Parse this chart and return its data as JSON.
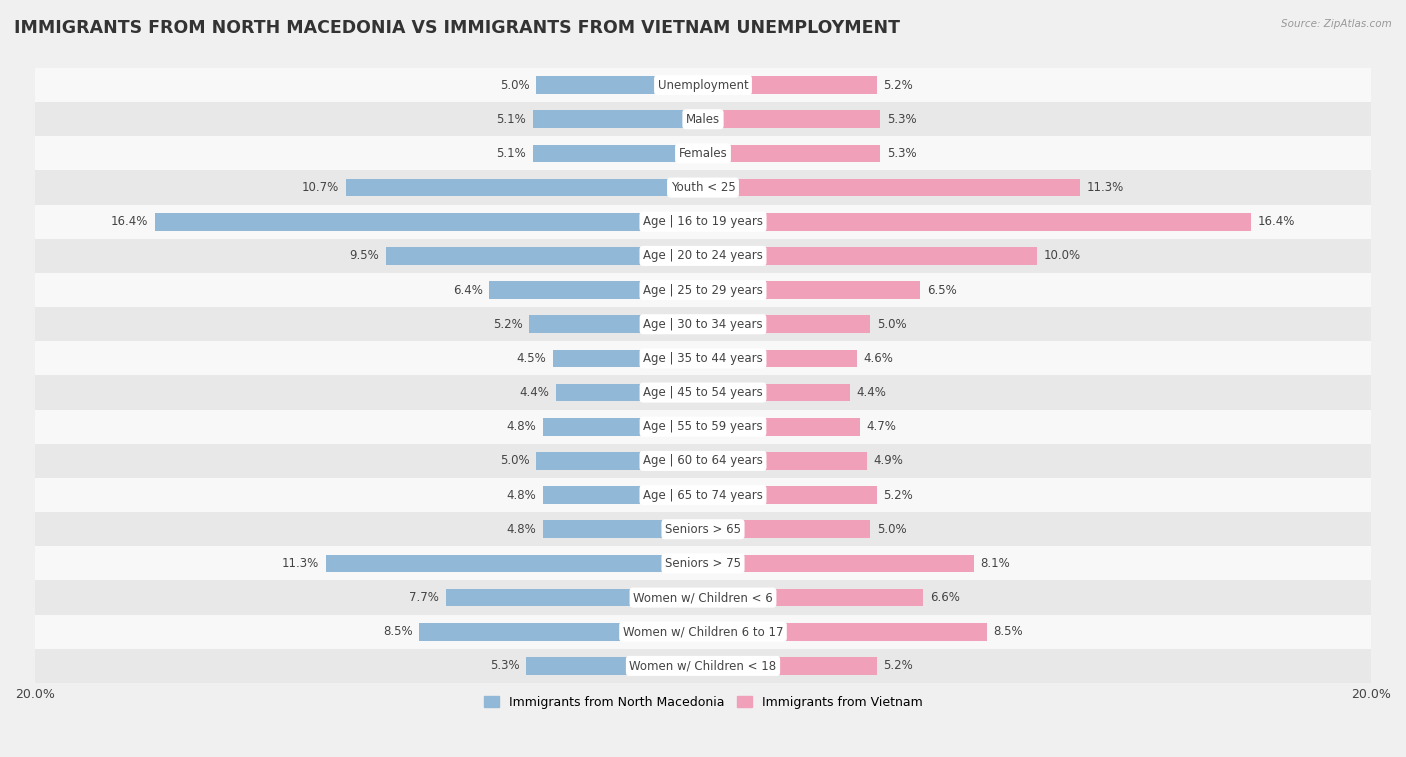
{
  "title": "IMMIGRANTS FROM NORTH MACEDONIA VS IMMIGRANTS FROM VIETNAM UNEMPLOYMENT",
  "source": "Source: ZipAtlas.com",
  "categories": [
    "Unemployment",
    "Males",
    "Females",
    "Youth < 25",
    "Age | 16 to 19 years",
    "Age | 20 to 24 years",
    "Age | 25 to 29 years",
    "Age | 30 to 34 years",
    "Age | 35 to 44 years",
    "Age | 45 to 54 years",
    "Age | 55 to 59 years",
    "Age | 60 to 64 years",
    "Age | 65 to 74 years",
    "Seniors > 65",
    "Seniors > 75",
    "Women w/ Children < 6",
    "Women w/ Children 6 to 17",
    "Women w/ Children < 18"
  ],
  "north_macedonia": [
    5.0,
    5.1,
    5.1,
    10.7,
    16.4,
    9.5,
    6.4,
    5.2,
    4.5,
    4.4,
    4.8,
    5.0,
    4.8,
    4.8,
    11.3,
    7.7,
    8.5,
    5.3
  ],
  "vietnam": [
    5.2,
    5.3,
    5.3,
    11.3,
    16.4,
    10.0,
    6.5,
    5.0,
    4.6,
    4.4,
    4.7,
    4.9,
    5.2,
    5.0,
    8.1,
    6.6,
    8.5,
    5.2
  ],
  "color_macedonia": "#92b8d8",
  "color_vietnam": "#f0a0b8",
  "xlim": 20.0,
  "background_color": "#f0f0f0",
  "row_color_odd": "#f8f8f8",
  "row_color_even": "#e8e8e8",
  "title_fontsize": 12.5,
  "label_fontsize": 8.5,
  "value_fontsize": 8.5,
  "bar_height": 0.52
}
